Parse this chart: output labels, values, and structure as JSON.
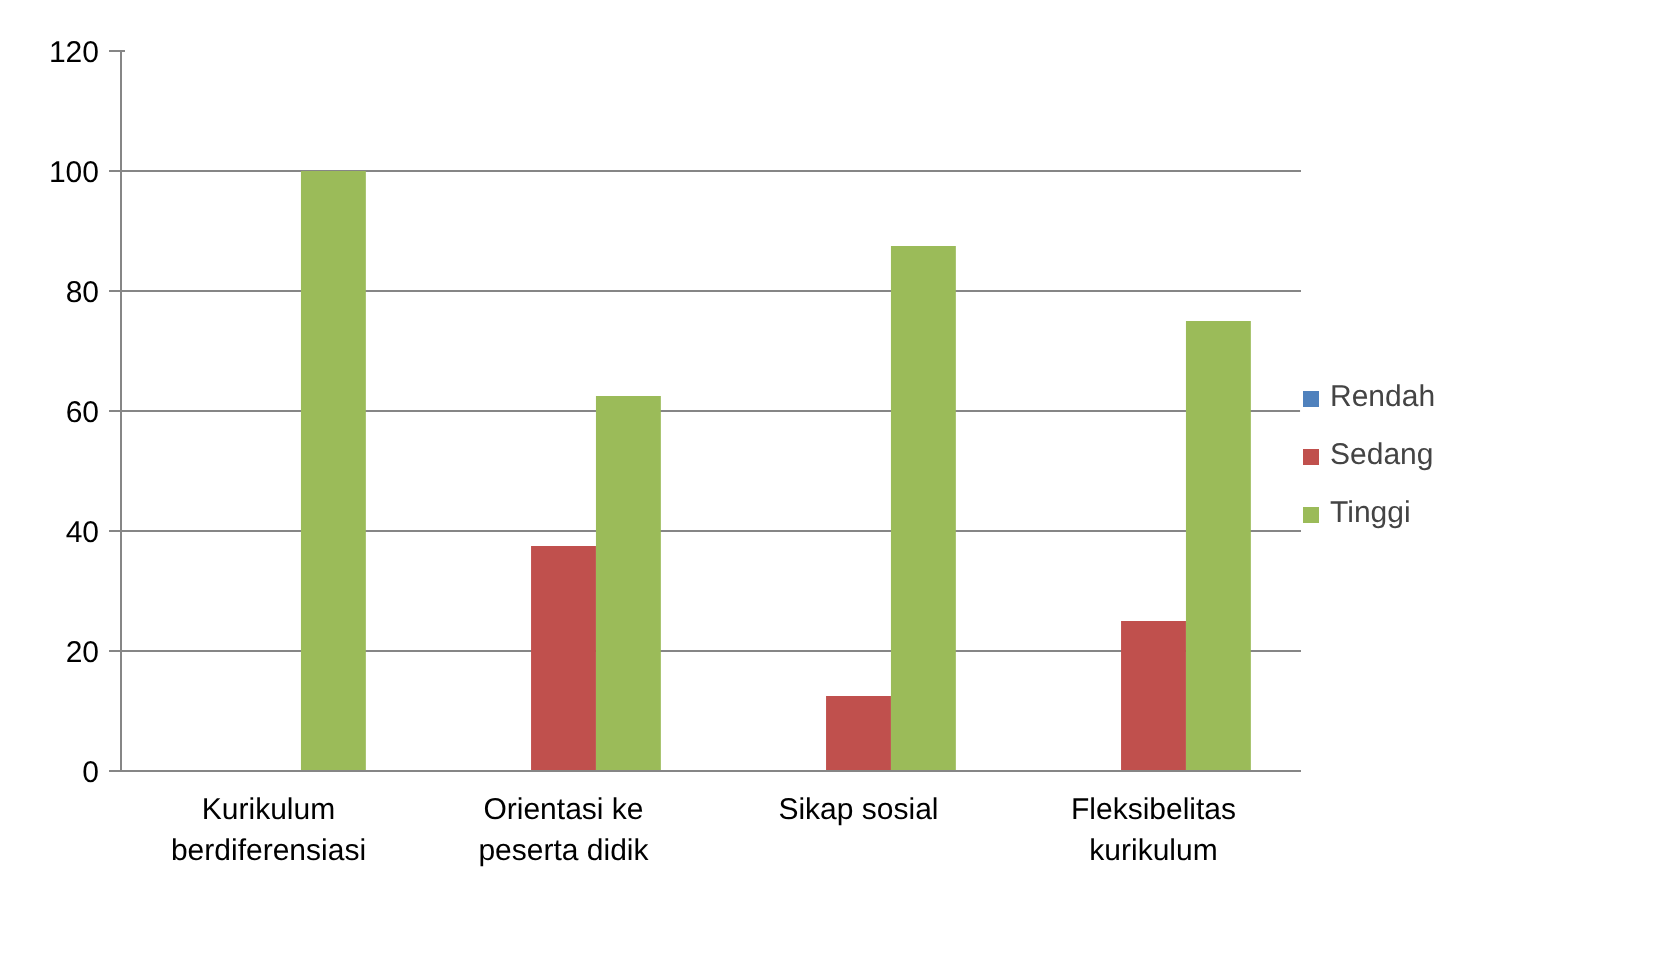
{
  "chart_data": {
    "type": "bar",
    "categories": [
      "Kurikulum berdiferensiasi",
      "Orientasi ke peserta didik",
      "Sikap sosial",
      "Fleksibelitas kurikulum"
    ],
    "series": [
      {
        "name": "Rendah",
        "color": "#4f81bd",
        "values": [
          0,
          0,
          0,
          0
        ]
      },
      {
        "name": "Sedang",
        "color": "#c0504d",
        "values": [
          0,
          37.5,
          12.5,
          25
        ]
      },
      {
        "name": "Tinggi",
        "color": "#9bbb59",
        "values": [
          100,
          62.5,
          87.5,
          75
        ]
      }
    ],
    "ylim": [
      0,
      120
    ],
    "yticks": [
      0,
      20,
      40,
      60,
      80,
      100,
      120
    ],
    "grid": "y",
    "legend": "right"
  }
}
